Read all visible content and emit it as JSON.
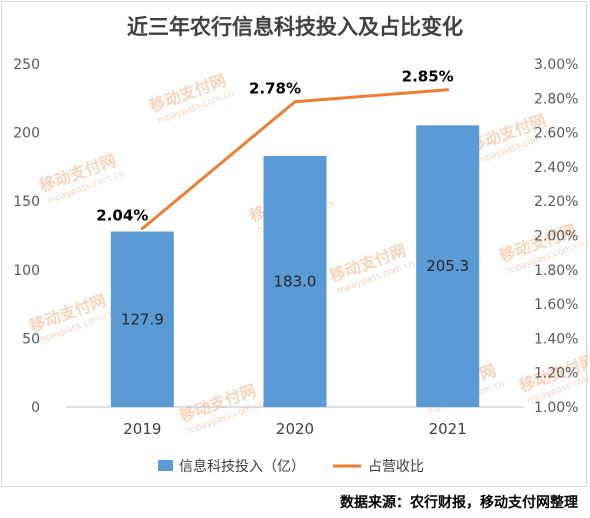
{
  "chart_data": {
    "type": "bar+line",
    "title": "近三年农行信息科技投入及占比变化",
    "categories": [
      "2019",
      "2020",
      "2021"
    ],
    "series": [
      {
        "name": "信息科技投入（亿）",
        "type": "bar",
        "axis": "left",
        "values": [
          127.9,
          183.0,
          205.3
        ],
        "labels": [
          "127.9",
          "183.0",
          "205.3"
        ],
        "color": "#5b9bd5"
      },
      {
        "name": "占营收比",
        "type": "line",
        "axis": "right",
        "values": [
          2.04,
          2.78,
          2.85
        ],
        "labels": [
          "2.04%",
          "2.78%",
          "2.85%"
        ],
        "color": "#ed7d31"
      }
    ],
    "left_axis": {
      "min": 0,
      "max": 250,
      "ticks": [
        "0",
        "50",
        "100",
        "150",
        "200",
        "250"
      ]
    },
    "right_axis": {
      "min": 1.0,
      "max": 3.0,
      "ticks": [
        "1.00%",
        "1.20%",
        "1.40%",
        "1.60%",
        "1.80%",
        "2.00%",
        "2.20%",
        "2.40%",
        "2.60%",
        "2.80%",
        "3.00%"
      ]
    },
    "legend_position": "bottom",
    "grid": false
  },
  "source_note": "数据来源：农行财报，移动支付网整理",
  "watermark": {
    "brand": "移动支付网",
    "url": "mpaypass.com.cn",
    "color": "#f4b183"
  }
}
